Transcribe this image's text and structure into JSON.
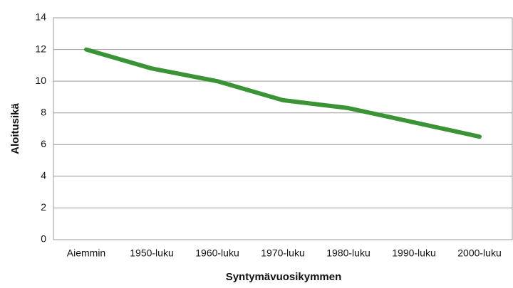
{
  "chart_data": {
    "type": "line",
    "x_label": "Syntymävuosikymmen",
    "y_label": "Aloitusikä",
    "categories": [
      "Aiemmin",
      "1950-luku",
      "1960-luku",
      "1970-luku",
      "1980-luku",
      "1990-luku",
      "2000-luku"
    ],
    "values": [
      12,
      10.8,
      10,
      8.8,
      8.3,
      7.4,
      6.5
    ],
    "color": "#3a9436",
    "ylim": [
      0,
      14
    ],
    "yticks": [
      0,
      2,
      4,
      6,
      8,
      10,
      12,
      14
    ],
    "grid": true
  }
}
